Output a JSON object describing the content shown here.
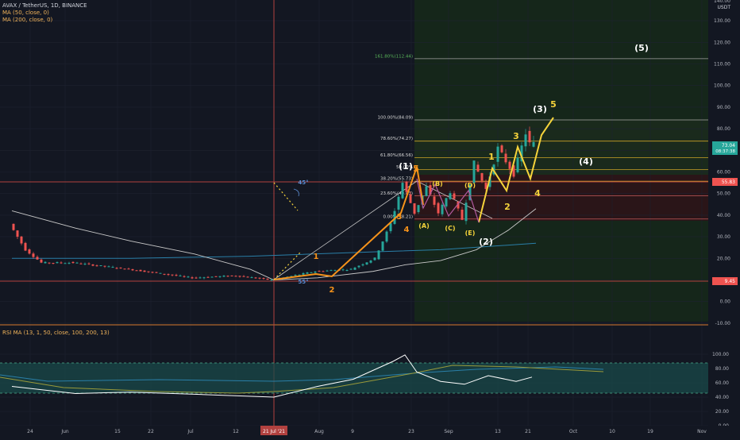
{
  "legend": {
    "title": "AVAX / TetherUS, 1D, BINANCE",
    "ma50": "MA (50, close, 0)",
    "ma200": "MA (200, close, 0)",
    "rsi": "RSI MA (13, 1, 50, close, 100, 200, 13)"
  },
  "axis": {
    "currency": "USDT",
    "price_ticks": [
      "140.00",
      "130.00",
      "120.00",
      "110.00",
      "100.00",
      "90.00",
      "80.00",
      "70.00",
      "60.00",
      "50.00",
      "40.00",
      "30.00",
      "20.00",
      "10.00",
      "0.00",
      "-10.00"
    ],
    "rsi_ticks": [
      "100.00",
      "80.00",
      "60.00",
      "40.00",
      "20.00",
      "0.00"
    ],
    "date_ticks": [
      "24",
      "Jun",
      "15",
      "22",
      "Jul",
      "12",
      "21 Jul '21",
      "Aug",
      "9",
      "23",
      "Sep",
      "13",
      "21",
      "Oct",
      "10",
      "19",
      "Nov"
    ],
    "price_tags": {
      "current": "73.04",
      "countdown": "08:37:38",
      "resistance": "55.83",
      "support": "9.45"
    }
  },
  "fib": [
    {
      "label": "161.80%(112.44)",
      "value": 112.44
    },
    {
      "label": "100.00%(84.09)",
      "value": 84.09
    },
    {
      "label": "78.60%(74.27)",
      "value": 74.27
    },
    {
      "label": "61.80%(66.56)",
      "value": 66.56
    },
    {
      "label": "50.00%",
      "value": 61.1
    },
    {
      "label": "38.20%(55.73)",
      "value": 55.73
    },
    {
      "label": "23.60%(49.03)",
      "value": 49.03
    },
    {
      "label": "0.00%(38.21)",
      "value": 38.21
    }
  ],
  "waves": {
    "w1": "1",
    "w2": "2",
    "w3": "3",
    "w4": "4",
    "w5": "5",
    "big1": "(1)",
    "big2": "(2)",
    "big3": "(3)",
    "big4": "(4)",
    "big5": "(5)",
    "A": "(A)",
    "B": "(B)",
    "C": "(C)",
    "D": "(D)",
    "E": "(E)",
    "angle45": "45°",
    "angle55": "55°"
  },
  "colors": {
    "bg": "#131722",
    "up": "#26a69a",
    "down": "#ef5350",
    "impulse": "#f7931a",
    "wave_yellow": "#f5d33b",
    "fib_gold": "#c9a227"
  },
  "chart_data": {
    "type": "candlestick",
    "title": "AVAX / TetherUS, 1D, BINANCE",
    "ylim": [
      -10,
      140
    ],
    "rsi_ylim": [
      0,
      100
    ],
    "current_price": 73.04,
    "horizontal_levels": [
      55.83,
      9.45
    ],
    "ma50": [
      {
        "x": "May 16",
        "y": 42
      },
      {
        "x": "Jun 1",
        "y": 34
      },
      {
        "x": "Jun 15",
        "y": 28
      },
      {
        "x": "Jul 1",
        "y": 22
      },
      {
        "x": "Jul 15",
        "y": 15
      },
      {
        "x": "Jul 21",
        "y": 10
      },
      {
        "x": "Aug 1",
        "y": 11
      },
      {
        "x": "Aug 15",
        "y": 14
      },
      {
        "x": "Aug 23",
        "y": 17
      },
      {
        "x": "Sep 1",
        "y": 19
      },
      {
        "x": "Sep 10",
        "y": 24
      },
      {
        "x": "Sep 18",
        "y": 33
      },
      {
        "x": "Sep 25",
        "y": 43
      }
    ],
    "ma200": [
      {
        "x": "May 16",
        "y": 20
      },
      {
        "x": "Jun 15",
        "y": 20
      },
      {
        "x": "Jul 15",
        "y": 21
      },
      {
        "x": "Aug 15",
        "y": 23
      },
      {
        "x": "Sep 1",
        "y": 24
      },
      {
        "x": "Sep 25",
        "y": 27
      }
    ],
    "price_path": [
      {
        "x": "May 16",
        "y": 36
      },
      {
        "x": "May 20",
        "y": 24
      },
      {
        "x": "May 24",
        "y": 18
      },
      {
        "x": "Jun 1",
        "y": 18
      },
      {
        "x": "Jun 15",
        "y": 15
      },
      {
        "x": "Jul 1",
        "y": 11
      },
      {
        "x": "Jul 12",
        "y": 12
      },
      {
        "x": "Jul 21",
        "y": 10
      },
      {
        "x": "Aug 1",
        "y": 14
      },
      {
        "x": "Aug 10",
        "y": 15
      },
      {
        "x": "Aug 16",
        "y": 20
      },
      {
        "x": "Aug 20",
        "y": 36
      },
      {
        "x": "Aug 23",
        "y": 55
      },
      {
        "x": "Aug 26",
        "y": 41
      },
      {
        "x": "Aug 29",
        "y": 53
      },
      {
        "x": "Sep 1",
        "y": 41
      },
      {
        "x": "Sep 4",
        "y": 51
      },
      {
        "x": "Sep 7",
        "y": 38
      },
      {
        "x": "Sep 10",
        "y": 64
      },
      {
        "x": "Sep 13",
        "y": 52
      },
      {
        "x": "Sep 16",
        "y": 71
      },
      {
        "x": "Sep 20",
        "y": 59
      },
      {
        "x": "Sep 23",
        "y": 78
      },
      {
        "x": "Sep 24",
        "y": 73
      }
    ],
    "rsi_path": [
      {
        "x": "May 16",
        "y": 55
      },
      {
        "x": "Jun 1",
        "y": 45
      },
      {
        "x": "Jun 15",
        "y": 47
      },
      {
        "x": "Jul 1",
        "y": 44
      },
      {
        "x": "Jul 21",
        "y": 40
      },
      {
        "x": "Aug 1",
        "y": 55
      },
      {
        "x": "Aug 10",
        "y": 65
      },
      {
        "x": "Aug 20",
        "y": 90
      },
      {
        "x": "Aug 23",
        "y": 99
      },
      {
        "x": "Aug 26",
        "y": 75
      },
      {
        "x": "Sep 1",
        "y": 62
      },
      {
        "x": "Sep 7",
        "y": 58
      },
      {
        "x": "Sep 13",
        "y": 70
      },
      {
        "x": "Sep 20",
        "y": 62
      },
      {
        "x": "Sep 24",
        "y": 68
      }
    ]
  }
}
